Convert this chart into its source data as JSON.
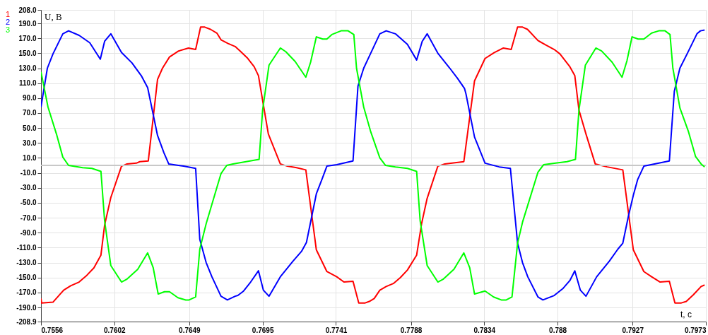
{
  "chart_data": {
    "type": "line",
    "xlabel": "t, c",
    "ylabel": "U, B",
    "legend": "top left",
    "grid": true,
    "line_style": "solid",
    "marker": "none",
    "xlim": [
      0.7556,
      0.7973
    ],
    "xticks": [
      0.7556,
      0.7602,
      0.7649,
      0.7695,
      0.7741,
      0.7788,
      0.7834,
      0.788,
      0.7927,
      0.7973
    ],
    "ylim": [
      -208.9,
      208.0
    ],
    "yticks": [
      {
        "value": 208,
        "label": "208.0"
      },
      {
        "value": 190,
        "label": "190.0"
      },
      {
        "value": 170,
        "label": "170.0"
      },
      {
        "value": 150,
        "label": "150.0"
      },
      {
        "value": 130,
        "label": "130.0"
      },
      {
        "value": 110,
        "label": "110.0"
      },
      {
        "value": 90,
        "label": "90.0"
      },
      {
        "value": 70,
        "label": "70.0"
      },
      {
        "value": 50,
        "label": "50.0"
      },
      {
        "value": 30,
        "label": "30.0"
      },
      {
        "value": 10,
        "label": "10.0"
      },
      {
        "value": -10,
        "label": "-10.0"
      },
      {
        "value": -30,
        "label": "-30.0"
      },
      {
        "value": -50,
        "label": "-50.0"
      },
      {
        "value": -70,
        "label": "-70.0"
      },
      {
        "value": -90,
        "label": "-90.0"
      },
      {
        "value": -110,
        "label": "-110.0"
      },
      {
        "value": -130,
        "label": "-130.0"
      },
      {
        "value": -150,
        "label": "-150.0"
      },
      {
        "value": -170,
        "label": "-170.0"
      },
      {
        "value": -190,
        "label": "-190.0"
      },
      {
        "value": -208.9,
        "label": "-208.9"
      }
    ],
    "ref_lines": [
      {
        "axis": "y",
        "value": 0,
        "color": "#c8c8c8"
      }
    ],
    "series": [
      {
        "name": "1",
        "color": "#ff0000",
        "x": [
          0.7556,
          0.75564,
          0.75635,
          0.75702,
          0.75746,
          0.75799,
          0.75843,
          0.75892,
          0.75936,
          0.75959,
          0.75998,
          0.76065,
          0.761,
          0.76158,
          0.7618,
          0.76233,
          0.76291,
          0.76322,
          0.76366,
          0.76423,
          0.76485,
          0.7653,
          0.76561,
          0.76587,
          0.76623,
          0.76663,
          0.76689,
          0.76734,
          0.76778,
          0.76809,
          0.76853,
          0.76897,
          0.76924,
          0.7695,
          0.76986,
          0.77061,
          0.77105,
          0.77163,
          0.77221,
          0.77287,
          0.77353,
          0.77415,
          0.7746,
          0.77517,
          0.77553,
          0.77593,
          0.77619,
          0.7765,
          0.77685,
          0.77725,
          0.7777,
          0.77814,
          0.77858,
          0.77916,
          0.77947,
          0.77982,
          0.78049,
          0.78093,
          0.78212,
          0.78279,
          0.78345,
          0.78403,
          0.7846,
          0.78509,
          0.78549,
          0.7858,
          0.78611,
          0.78677,
          0.78726,
          0.78779,
          0.78815,
          0.78877,
          0.78908,
          0.78934,
          0.78978,
          0.79036,
          0.79111,
          0.79209,
          0.79275,
          0.79341,
          0.7939,
          0.79443,
          0.79501,
          0.79536,
          0.79576,
          0.79607,
          0.79652,
          0.797,
          0.79722
        ],
        "values": [
          -178,
          -184,
          -183,
          -167,
          -161,
          -156,
          -148,
          -137,
          -120,
          -80,
          -43,
          -1,
          2,
          3,
          5,
          6,
          115,
          130,
          145,
          153,
          157,
          155,
          185,
          185,
          182,
          177,
          168,
          163,
          159,
          153,
          144,
          132,
          120,
          87,
          42,
          2,
          -1,
          -3,
          -6,
          -113,
          -142,
          -149,
          -156,
          -155,
          -184,
          -184,
          -182,
          -178,
          -167,
          -162,
          -158,
          -150,
          -140,
          -120,
          -78,
          -44,
          -1,
          2,
          5,
          113,
          143,
          151,
          157,
          155,
          185,
          185,
          182,
          167,
          161,
          155,
          149,
          132,
          120,
          74,
          42,
          2,
          -2,
          -6,
          -113,
          -142,
          -149,
          -156,
          -155,
          -184,
          -184,
          -182,
          -173,
          -162,
          -160
        ]
      },
      {
        "name": "2",
        "color": "#0000ff",
        "x": [
          0.7556,
          0.75569,
          0.756,
          0.75635,
          0.75697,
          0.75733,
          0.75799,
          0.75866,
          0.75932,
          0.75959,
          0.75998,
          0.76065,
          0.76131,
          0.76189,
          0.76229,
          0.76291,
          0.76331,
          0.76361,
          0.76454,
          0.7653,
          0.76556,
          0.76596,
          0.76632,
          0.76689,
          0.76729,
          0.76778,
          0.76795,
          0.76831,
          0.76875,
          0.76924,
          0.76955,
          0.7699,
          0.77061,
          0.77141,
          0.77194,
          0.77225,
          0.77287,
          0.77327,
          0.77353,
          0.77415,
          0.77517,
          0.77548,
          0.77584,
          0.77619,
          0.77685,
          0.77725,
          0.77783,
          0.77858,
          0.77916,
          0.77951,
          0.77982,
          0.78049,
          0.78124,
          0.78174,
          0.78216,
          0.78225,
          0.78279,
          0.78345,
          0.78434,
          0.78504,
          0.78549,
          0.7858,
          0.78613,
          0.78677,
          0.78708,
          0.78779,
          0.78832,
          0.78877,
          0.78908,
          0.78943,
          0.78978,
          0.79045,
          0.79125,
          0.79178,
          0.79209,
          0.79244,
          0.79275,
          0.79302,
          0.79341,
          0.79408,
          0.79501,
          0.79532,
          0.79567,
          0.79612,
          0.79674,
          0.79696,
          0.79722
        ],
        "values": [
          78,
          90,
          130,
          149,
          176,
          180,
          174,
          164,
          142,
          166,
          176,
          151,
          137,
          120,
          104,
          40,
          17,
          2,
          -1,
          -4,
          -99,
          -130,
          -149,
          -175,
          -180,
          -175,
          -174,
          -168,
          -156,
          -141,
          -167,
          -175,
          -149,
          -128,
          -115,
          -103,
          -38,
          -16,
          -1,
          1,
          6,
          106,
          130,
          146,
          176,
          180,
          176,
          162,
          141,
          166,
          176,
          150,
          130,
          116,
          103,
          96,
          38,
          3,
          -2,
          -4,
          -104,
          -130,
          -149,
          -176,
          -180,
          -174,
          -165,
          -154,
          -141,
          -167,
          -175,
          -149,
          -128,
          -112,
          -104,
          -68,
          -40,
          -19,
          -1,
          2,
          6,
          99,
          130,
          149,
          176,
          180,
          181
        ]
      },
      {
        "name": "3",
        "color": "#00ff00",
        "x": [
          0.7556,
          0.75578,
          0.75604,
          0.75657,
          0.75697,
          0.75733,
          0.75821,
          0.75879,
          0.75936,
          0.75959,
          0.75998,
          0.76065,
          0.761,
          0.76167,
          0.76229,
          0.76264,
          0.76295,
          0.76335,
          0.76366,
          0.76419,
          0.76468,
          0.76489,
          0.7653,
          0.76556,
          0.76596,
          0.76689,
          0.76725,
          0.76764,
          0.76928,
          0.7695,
          0.7699,
          0.77061,
          0.77096,
          0.77154,
          0.77221,
          0.77251,
          0.77287,
          0.77327,
          0.77353,
          0.77384,
          0.77442,
          0.77486,
          0.77522,
          0.77539,
          0.77584,
          0.77628,
          0.77685,
          0.77721,
          0.77783,
          0.77858,
          0.77916,
          0.77938,
          0.77982,
          0.78049,
          0.78084,
          0.7815,
          0.78212,
          0.78249,
          0.78279,
          0.78345,
          0.78399,
          0.78447,
          0.78478,
          0.78514,
          0.78549,
          0.7858,
          0.78677,
          0.78713,
          0.78788,
          0.78859,
          0.78912,
          0.78934,
          0.78974,
          0.7904,
          0.79076,
          0.79142,
          0.79204,
          0.79235,
          0.79267,
          0.79305,
          0.79341,
          0.7939,
          0.79435,
          0.79474,
          0.79505,
          0.79523,
          0.79567,
          0.79621,
          0.79665,
          0.797,
          0.79722
        ],
        "values": [
          125,
          106,
          78,
          42,
          11,
          0,
          -3,
          -4,
          -8,
          -74,
          -134,
          -156,
          -152,
          -139,
          -117,
          -137,
          -172,
          -169,
          -169,
          -177,
          -180,
          -180,
          -176,
          -112,
          -78,
          -11,
          0,
          2,
          8,
          74,
          134,
          157,
          152,
          139,
          118,
          138,
          172,
          169,
          169,
          175,
          180,
          180,
          175,
          130,
          78,
          45,
          10,
          0,
          -2,
          -4,
          -8,
          -74,
          -134,
          -156,
          -152,
          -139,
          -117,
          -137,
          -172,
          -168,
          -176,
          -180,
          -180,
          -176,
          -104,
          -76,
          -9,
          1,
          3,
          5,
          8,
          74,
          134,
          157,
          153,
          138,
          118,
          140,
          172,
          169,
          169,
          177,
          180,
          180,
          175,
          130,
          77,
          45,
          12,
          2,
          -2
        ]
      }
    ]
  }
}
